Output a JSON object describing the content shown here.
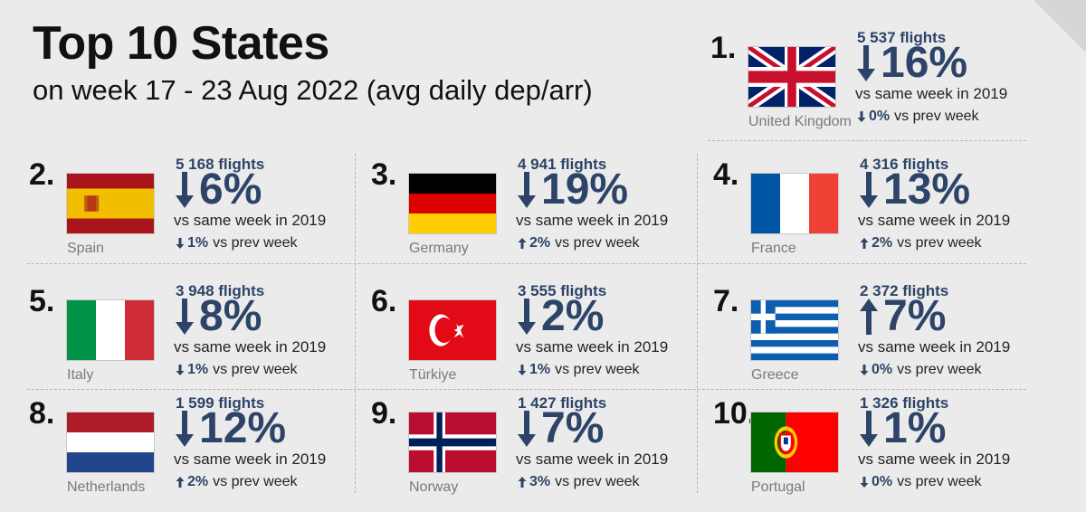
{
  "header": {
    "title": "Top 10 States",
    "subtitle": "on week 17 - 23 Aug 2022 (avg daily dep/arr)"
  },
  "colors": {
    "accent": "#2d4468",
    "background": "#ebebeb"
  },
  "states": [
    {
      "rank": "1.",
      "name": "United Kingdom",
      "flag": "uk-flag",
      "flights": "5 537 flights",
      "vs2019": "16%",
      "vs2019_dir": "down",
      "vs2019_text": "vs  same week  in 2019",
      "prev": "0%",
      "prev_dir": "down",
      "prev_text": "vs prev week"
    },
    {
      "rank": "2.",
      "name": "Spain",
      "flag": "spain-flag",
      "flights": "5 168 flights",
      "vs2019": "6%",
      "vs2019_dir": "down",
      "vs2019_text": "vs  same week  in 2019",
      "prev": "1%",
      "prev_dir": "down",
      "prev_text": "vs prev week"
    },
    {
      "rank": "3.",
      "name": "Germany",
      "flag": "germany-flag",
      "flights": "4 941 flights",
      "vs2019": "19%",
      "vs2019_dir": "down",
      "vs2019_text": "vs  same week  in 2019",
      "prev": "2%",
      "prev_dir": "up",
      "prev_text": "vs prev week"
    },
    {
      "rank": "4.",
      "name": "France",
      "flag": "france-flag",
      "flights": "4 316 flights",
      "vs2019": "13%",
      "vs2019_dir": "down",
      "vs2019_text": "vs  same week  in 2019",
      "prev": "2%",
      "prev_dir": "up",
      "prev_text": "vs prev week"
    },
    {
      "rank": "5.",
      "name": "Italy",
      "flag": "italy-flag",
      "flights": "3 948 flights",
      "vs2019": "8%",
      "vs2019_dir": "down",
      "vs2019_text": "vs  same week  in 2019",
      "prev": "1%",
      "prev_dir": "down",
      "prev_text": "vs prev week"
    },
    {
      "rank": "6.",
      "name": "Türkiye",
      "flag": "turkiye-flag",
      "flights": "3 555 flights",
      "vs2019": "2%",
      "vs2019_dir": "down",
      "vs2019_text": "vs  same week  in 2019",
      "prev": "1%",
      "prev_dir": "down",
      "prev_text": "vs prev week"
    },
    {
      "rank": "7.",
      "name": "Greece",
      "flag": "greece-flag",
      "flights": "2 372 flights",
      "vs2019": "7%",
      "vs2019_dir": "up",
      "vs2019_text": "vs  same week  in 2019",
      "prev": "0%",
      "prev_dir": "down",
      "prev_text": "vs prev week"
    },
    {
      "rank": "8.",
      "name": "Netherlands",
      "flag": "netherlands-flag",
      "flights": "1 599 flights",
      "vs2019": "12%",
      "vs2019_dir": "down",
      "vs2019_text": "vs  same week  in 2019",
      "prev": "2%",
      "prev_dir": "up",
      "prev_text": "vs prev week"
    },
    {
      "rank": "9.",
      "name": "Norway",
      "flag": "norway-flag",
      "flights": "1 427 flights",
      "vs2019": "7%",
      "vs2019_dir": "down",
      "vs2019_text": "vs  same week  in 2019",
      "prev": "3%",
      "prev_dir": "up",
      "prev_text": "vs prev week"
    },
    {
      "rank": "10.",
      "name": "Portugal",
      "flag": "portugal-flag",
      "flights": "1 326 flights",
      "vs2019": "1%",
      "vs2019_dir": "down",
      "vs2019_text": "vs  same week  in 2019",
      "prev": "0%",
      "prev_dir": "down",
      "prev_text": "vs prev week"
    }
  ]
}
